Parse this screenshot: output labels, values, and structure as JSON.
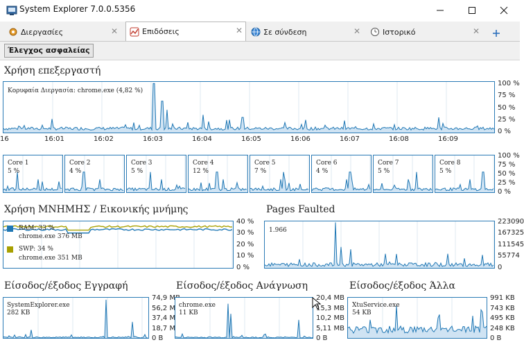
{
  "window": {
    "title": "System Explorer 7.0.0.5356"
  },
  "tabs": [
    {
      "label": "Διεργασίες",
      "icon": "gear-icon"
    },
    {
      "label": "Επιδόσεις",
      "icon": "performance-icon"
    },
    {
      "label": "Σε σύνδεση",
      "icon": "globe-icon"
    },
    {
      "label": "Ιστορικό",
      "icon": "clock-icon"
    }
  ],
  "toolbar": {
    "security_check": "Έλεγχος ασφαλείας"
  },
  "cpu": {
    "title": "Χρήση επεξεργαστή",
    "caption": "Κορυφαία Διεργασία: chrome.exe (4,82 %)",
    "y_ticks": [
      "100 %",
      "75 %",
      "50 %",
      "25 %",
      "0 %"
    ],
    "time_ticks": [
      "16",
      "16:01",
      "16:02",
      "16:03",
      "16:04",
      "16:05",
      "16:06",
      "16:07",
      "16:08",
      "16:09"
    ]
  },
  "cores": [
    {
      "name": "Core 1",
      "value": "5 %"
    },
    {
      "name": "Core 2",
      "value": "4 %"
    },
    {
      "name": "Core 3",
      "value": "5 %"
    },
    {
      "name": "Core 4",
      "value": "12 %"
    },
    {
      "name": "Core 5",
      "value": "7 %"
    },
    {
      "name": "Core 6",
      "value": "4 %"
    },
    {
      "name": "Core 7",
      "value": "5 %"
    },
    {
      "name": "Core 8",
      "value": "5 %"
    }
  ],
  "cores_y_ticks": [
    "100 %",
    "75 %",
    "50 %",
    "25 %",
    "0 %"
  ],
  "memory": {
    "title": "Χρήση ΜΝΗΜΗΣ / Εικονικής μνήμης",
    "ram_label": "RAM: 33 %",
    "ram_process": "chrome.exe 376 MB",
    "swp_label": "SWP: 34 %",
    "swp_process": "chrome.exe 351 MB",
    "y_ticks": [
      "40 %",
      "30 %",
      "20 %",
      "10 %",
      "0 %"
    ],
    "ram_color": "#1f77b4",
    "swp_color": "#a8a000"
  },
  "pages": {
    "title": "Pages Faulted",
    "caption": "1.966",
    "y_ticks": [
      "223090",
      "167325",
      "111545",
      "55774",
      "0"
    ]
  },
  "io_write": {
    "title": "Είσοδος/έξοδος Εγγραφή",
    "caption_name": "SystemExplorer.exe",
    "caption_value": "282 KB",
    "y_ticks": [
      "74,9 MB",
      "56,2 MB",
      "37,4 MB",
      "18,7 MB",
      "0 B"
    ]
  },
  "io_read": {
    "title": "Είσοδος/έξοδος Ανάγνωση",
    "caption_name": "chrome.exe",
    "caption_value": "11 KB",
    "y_ticks": [
      "20,4 MB",
      "15,3 MB",
      "10,2 MB",
      "5,11 MB",
      "0 B"
    ]
  },
  "io_other": {
    "title": "Είσοδος/έξοδος Άλλα",
    "caption_name": "XtuService.exe",
    "caption_value": "54 KB",
    "y_ticks": [
      "991 KB",
      "743 KB",
      "495 KB",
      "248 KB",
      "0 B"
    ]
  },
  "colors": {
    "line": "#1f77b4",
    "fill": "#cfe3f3",
    "grid": "#c9dbe9",
    "border": "#2a7ab5"
  }
}
